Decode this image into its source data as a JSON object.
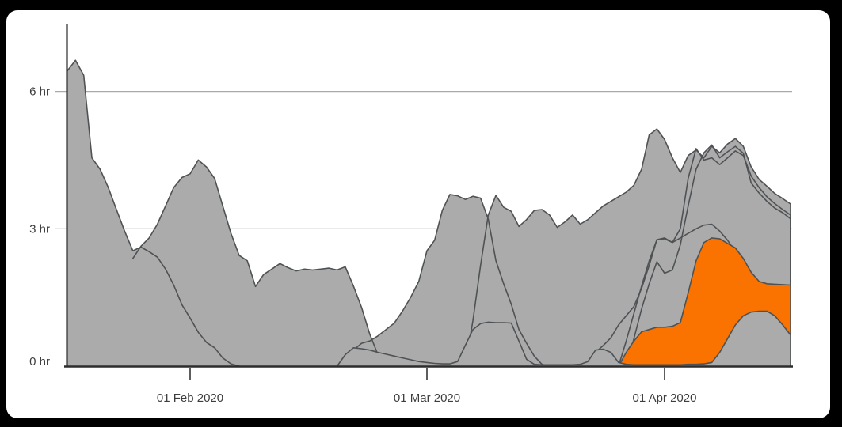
{
  "window": {
    "background": "#000000",
    "card_background": "#ffffff"
  },
  "colors": {
    "area_fill": "#ababab",
    "area_outline": "#4f5254",
    "highlight_fill": "#fa7200",
    "axis_line": "#2d2d2d",
    "tick_mark": "#4b4b4b",
    "gridline": "#a9a9a9",
    "label_text": "#3d3d3d"
  },
  "chart_data": {
    "type": "area",
    "title": "",
    "legend": "none",
    "grid": {
      "y_values": [
        3,
        6
      ],
      "style": "horizontal-only"
    },
    "x_axis": {
      "labels": [
        "01 Feb 2020",
        "01 Mar 2020",
        "01 Apr 2020"
      ],
      "tick_days": [
        15,
        44,
        75
      ],
      "days_total": 91
    },
    "y_axis": {
      "labels": [
        "0 hr",
        "3 hr",
        "6 hr"
      ],
      "values": [
        0,
        3,
        6
      ],
      "unit": "hr"
    },
    "ylim": [
      0,
      7.4
    ],
    "series": [
      {
        "name": "series-1",
        "layer": "back",
        "highlight": false,
        "start_day": 0,
        "values": [
          6.45,
          6.68,
          6.35,
          4.55,
          4.3,
          3.9,
          3.42,
          2.95,
          2.52,
          2.6,
          2.5,
          2.38,
          2.12,
          1.77,
          1.34,
          1.05,
          0.74,
          0.52,
          0.4,
          0.18,
          0.05,
          0
        ]
      },
      {
        "name": "series-2",
        "layer": "back",
        "highlight": false,
        "start_day": 8,
        "values": [
          2.35,
          2.62,
          2.8,
          3.1,
          3.5,
          3.9,
          4.12,
          4.2,
          4.5,
          4.35,
          4.1,
          3.5,
          2.9,
          2.42,
          2.3,
          1.74,
          2.0,
          2.12,
          2.24,
          2.15,
          2.08,
          2.12,
          2.1,
          2.12,
          2.14,
          2.1,
          2.17,
          1.75,
          1.28,
          0.7,
          0.25,
          0.08,
          0
        ]
      },
      {
        "name": "series-3",
        "layer": "back",
        "highlight": false,
        "start_day": 33,
        "values": [
          0,
          0.2,
          0.35,
          0.5,
          0.55,
          0.66,
          0.8,
          0.94,
          1.2,
          1.5,
          1.85,
          2.52,
          2.75,
          3.4,
          3.75,
          3.72,
          3.64,
          3.71,
          3.67,
          3.21,
          2.3,
          1.8,
          1.35,
          0.8,
          0.5,
          0.22,
          0.04,
          0
        ]
      },
      {
        "name": "series-4",
        "layer": "back",
        "highlight": false,
        "start_day": 49,
        "values": [
          0,
          1.0,
          2.2,
          3.3,
          3.73,
          3.47,
          3.38,
          3.05,
          3.2,
          3.4,
          3.42,
          3.3,
          3.03,
          3.15,
          3.3,
          3.1,
          3.2,
          3.35,
          3.5,
          3.6,
          3.7,
          3.8,
          3.95,
          4.3,
          5.05,
          5.18,
          4.95,
          4.55,
          4.23,
          4.6,
          4.72,
          4.55,
          4.8,
          4.66,
          4.85,
          4.97,
          4.8,
          4.35,
          4.08,
          3.93,
          3.77,
          3.66,
          3.54
        ]
      },
      {
        "name": "series-5",
        "layer": "back",
        "highlight": false,
        "start_day": 69,
        "values": [
          0,
          0.55,
          1.15,
          1.75,
          2.3,
          2.76,
          2.78,
          2.7,
          3.0,
          4.1,
          4.75,
          4.5,
          4.55,
          4.4,
          4.55,
          4.7,
          4.6,
          4.15,
          3.9,
          3.7,
          3.55,
          3.42,
          3.3
        ]
      },
      {
        "name": "series-6",
        "layer": "back",
        "highlight": false,
        "start_day": 70,
        "values": [
          0,
          0.6,
          1.25,
          1.8,
          2.28,
          2.03,
          2.1,
          2.65,
          3.5,
          4.3,
          4.66,
          4.83,
          4.55,
          4.68,
          4.8,
          4.65,
          4.0,
          3.78,
          3.6,
          3.45,
          3.35,
          3.22
        ]
      },
      {
        "name": "series-7",
        "layer": "back",
        "highlight": false,
        "start_day": 64,
        "values": [
          0,
          0.1,
          0.3,
          0.45,
          0.62,
          0.9,
          1.1,
          1.3,
          1.7,
          2.2,
          2.76,
          2.8,
          2.7,
          2.8,
          2.9,
          3.0,
          3.08,
          3.1,
          2.95,
          2.75,
          2.5,
          2.0,
          1.9,
          1.75,
          1.6,
          1.5,
          1.45,
          1.4
        ]
      },
      {
        "name": "series-highlight",
        "layer": "highlight",
        "highlight": true,
        "start_day": 69,
        "values": [
          0,
          0.3,
          0.55,
          0.75,
          0.8,
          0.85,
          0.85,
          0.87,
          0.95,
          1.6,
          2.3,
          2.7,
          2.8,
          2.78,
          2.68,
          2.58,
          2.35,
          2.05,
          1.85,
          1.8,
          1.79,
          1.78,
          1.77
        ]
      },
      {
        "name": "series-front",
        "layer": "front",
        "highlight": false,
        "start_day": 33,
        "values": [
          0,
          0.25,
          0.4,
          0.38,
          0.35,
          0.3,
          0.26,
          0.22,
          0.18,
          0.14,
          0.1,
          0.08,
          0.06,
          0.05,
          0.05,
          0.1,
          0.45,
          0.8,
          0.93,
          0.96,
          0.95,
          0.95,
          0.94,
          0.55,
          0.15,
          0.04,
          0.03,
          0.03,
          0.03,
          0.03,
          0.03,
          0.04,
          0.1,
          0.35,
          0.37,
          0.3,
          0.08,
          0.04,
          0.03,
          0.03,
          0.03,
          0.03,
          0.03,
          0.03,
          0.03,
          0.04,
          0.04,
          0.05,
          0.08,
          0.3,
          0.6,
          0.9,
          1.1,
          1.18,
          1.2,
          1.2,
          1.1,
          0.9,
          0.68,
          0.48
        ]
      }
    ]
  }
}
